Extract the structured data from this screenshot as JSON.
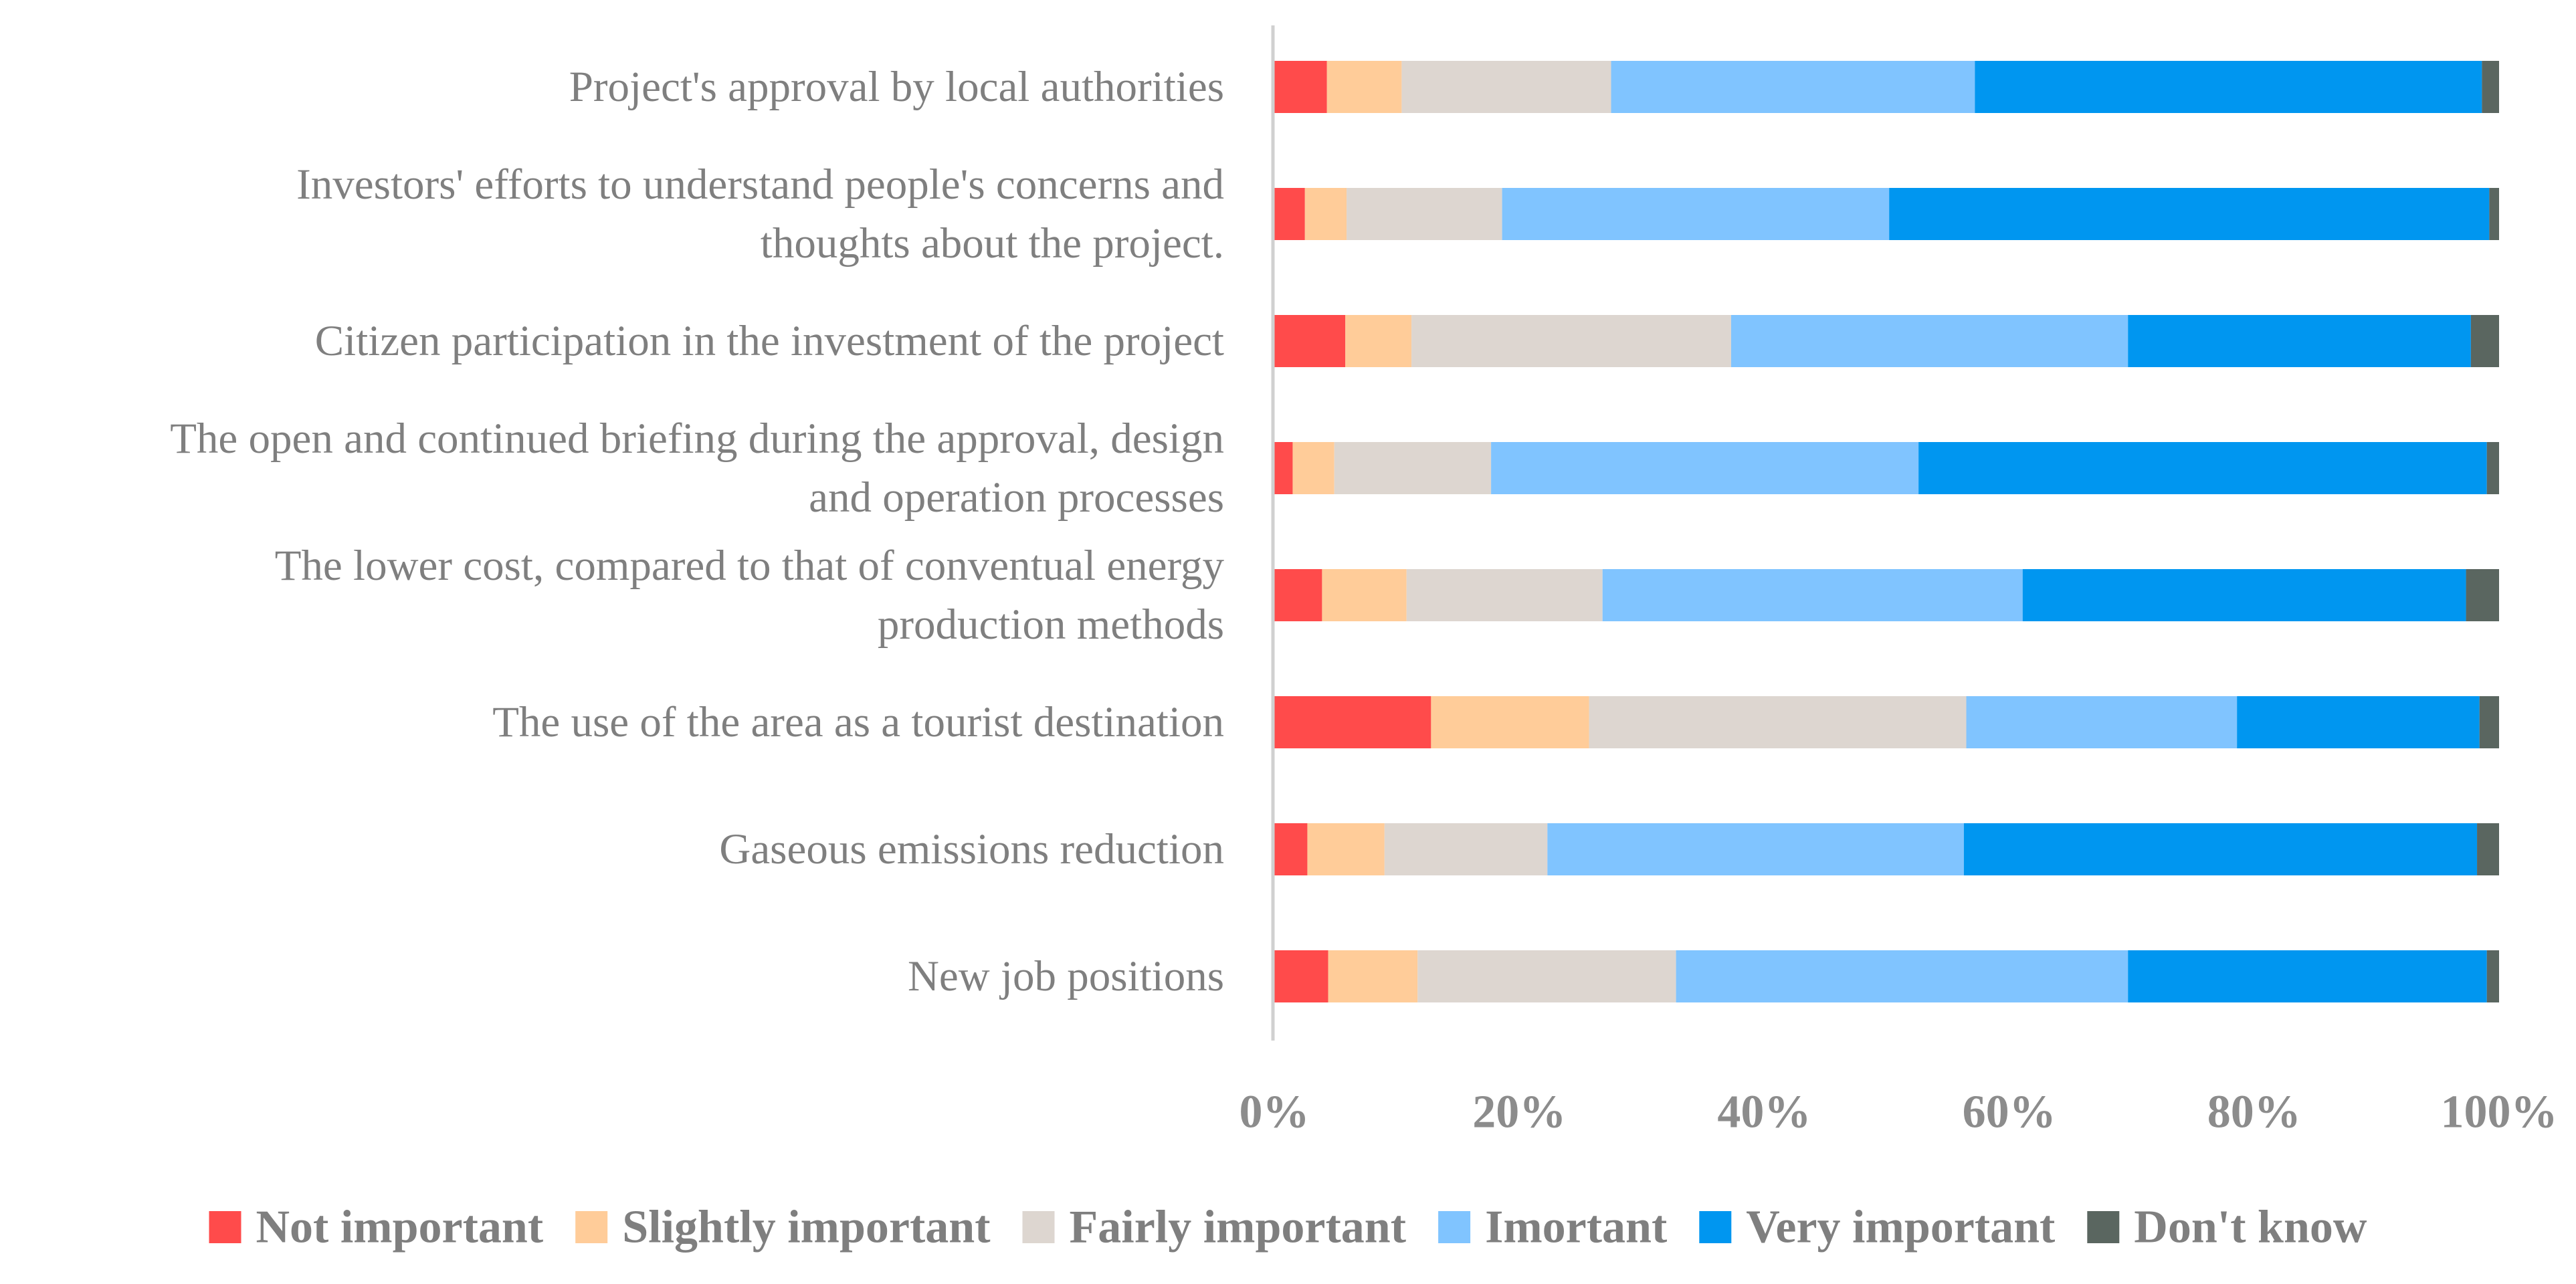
{
  "chart_data": {
    "type": "bar",
    "orientation": "horizontal",
    "stacked": true,
    "percent_stacked": true,
    "title": "",
    "xlabel": "",
    "ylabel": "",
    "xlim": [
      0,
      100
    ],
    "x_ticks": [
      "0%",
      "20%",
      "40%",
      "60%",
      "80%",
      "100%"
    ],
    "grid": false,
    "legend_position": "bottom",
    "categories": [
      [
        "Project's approval by local authorities"
      ],
      [
        "Investors' efforts to understand people's concerns and",
        "thoughts about the project."
      ],
      [
        "Citizen participation in the investment of the project"
      ],
      [
        "The open and continued briefing during the approval, design",
        "and operation processes"
      ],
      [
        "The lower cost, compared to that of conventual energy",
        "production methods"
      ],
      [
        "The use of the area as a tourist destination"
      ],
      [
        "Gaseous emissions reduction"
      ],
      [
        "New job positions"
      ]
    ],
    "series": [
      {
        "name": "Not important",
        "color": "#ff4b4b",
        "values": [
          4.3,
          2.5,
          5.8,
          1.5,
          3.9,
          12.8,
          2.7,
          4.4
        ]
      },
      {
        "name": "Slightly important",
        "color": "#ffcc99",
        "values": [
          6.1,
          3.4,
          5.4,
          3.4,
          6.9,
          12.9,
          6.3,
          7.3
        ]
      },
      {
        "name": "Fairly important",
        "color": "#ddd6d0",
        "values": [
          17.1,
          12.7,
          26.1,
          12.8,
          16.0,
          30.8,
          13.3,
          21.1
        ]
      },
      {
        "name": "Imortant",
        "color": "#80c4ff",
        "values": [
          29.7,
          31.6,
          32.4,
          34.9,
          34.3,
          22.1,
          34.0,
          36.9
        ]
      },
      {
        "name": "Very important",
        "color": "#0096f0",
        "values": [
          41.4,
          49.0,
          28.0,
          46.4,
          36.2,
          19.8,
          41.9,
          29.3
        ]
      },
      {
        "name": "Don't know",
        "color": "#5a6660",
        "values": [
          1.4,
          0.8,
          2.3,
          1.0,
          2.7,
          1.6,
          1.8,
          1.0
        ]
      }
    ]
  }
}
